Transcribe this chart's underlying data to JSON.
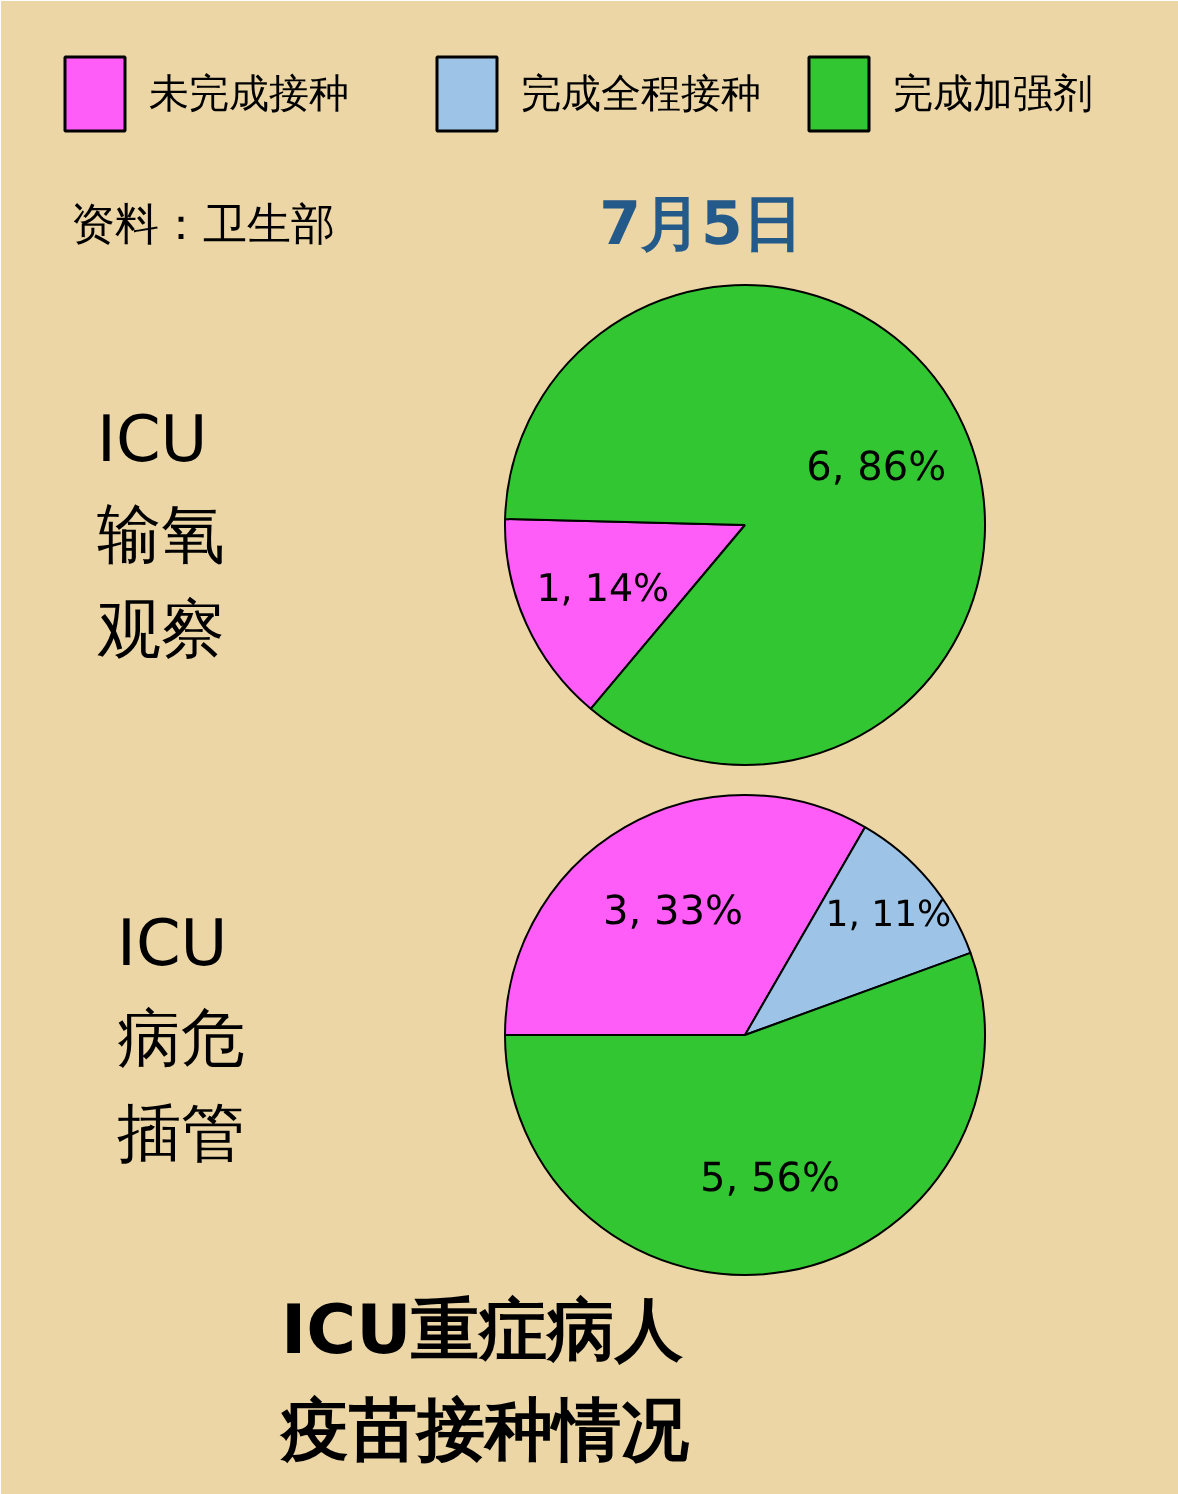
{
  "chart_data": {
    "type": "pie",
    "title": "ICU重症病人疫苗接种情况",
    "subtitle": "7月5日",
    "annotations": [
      "资料：卫生部"
    ],
    "categories": [
      "未完成接种",
      "完成全程接种",
      "完成加强剂"
    ],
    "colors": [
      "#ff5cf8",
      "#9dc3e6",
      "#33c633"
    ],
    "legend": "top",
    "series": [
      {
        "name": "ICU输氧观察",
        "values": [
          1,
          null,
          6
        ],
        "value_labels": [
          "1, 14%",
          null,
          "6, 86%"
        ]
      },
      {
        "name": "ICU病危插管",
        "values": [
          3,
          1,
          5
        ],
        "value_labels": [
          "3, 33%",
          "1, 11%",
          "5, 56%"
        ]
      }
    ]
  }
}
